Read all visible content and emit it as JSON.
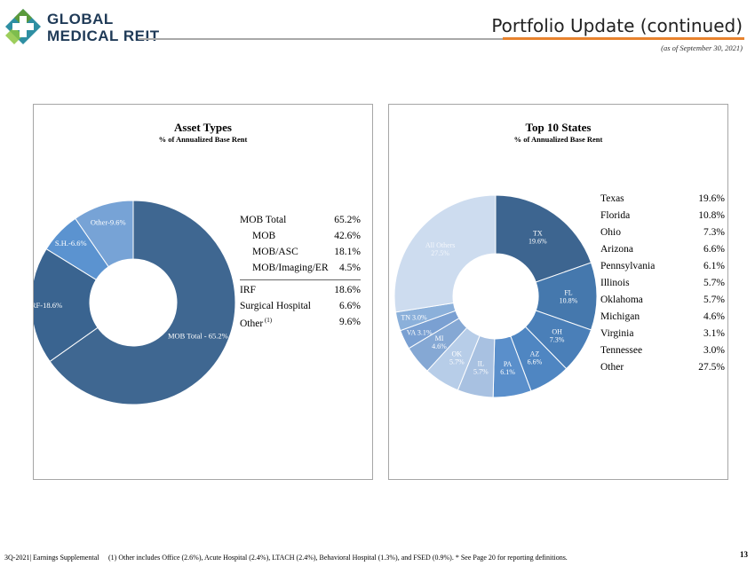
{
  "header": {
    "brand_line1": "GLOBAL",
    "brand_line2": "MEDICAL REIT",
    "title": "Portfolio Update (continued)",
    "as_of": "(as of September 30, 2021)"
  },
  "colors": {
    "accent_orange": "#e8832e",
    "brand_green": "#5b9a3c",
    "brand_teal": "#2f8fa3",
    "brand_navy": "#1f3a57"
  },
  "chart_data": [
    {
      "type": "pie",
      "title": "Asset Types",
      "subtitle": "% of Annualized  Base Rent",
      "categories": [
        "MOB Total",
        "IRF",
        "S.H.",
        "Other"
      ],
      "values": [
        65.2,
        18.6,
        6.6,
        9.6
      ],
      "slice_labels": [
        "MOB Total - 65.2%",
        "IRF-18.6%",
        "S.H.-6.6%",
        "Other-9.6%"
      ],
      "colors": [
        "#3f6791",
        "#3a6490",
        "#5b93d0",
        "#77a3d6"
      ],
      "legend_table": [
        {
          "label": "MOB Total",
          "value": "65.2%",
          "indent": false,
          "sup": ""
        },
        {
          "label": "MOB",
          "value": "42.6%",
          "indent": true,
          "sup": ""
        },
        {
          "label": "MOB/ASC",
          "value": "18.1%",
          "indent": true,
          "sup": ""
        },
        {
          "label": "MOB/Imaging/ER",
          "value": "4.5%",
          "indent": true,
          "sup": ""
        },
        {
          "label": "IRF",
          "value": "18.6%",
          "indent": false,
          "sup": ""
        },
        {
          "label": "Surgical Hospital",
          "value": "6.6%",
          "indent": false,
          "sup": ""
        },
        {
          "label": "Other",
          "value": "9.6%",
          "indent": false,
          "sup": "(1)"
        }
      ]
    },
    {
      "type": "pie",
      "title": "Top 10 States",
      "subtitle": "% of Annualized  Base Rent",
      "categories": [
        "TX",
        "FL",
        "OH",
        "AZ",
        "PA",
        "IL",
        "OK",
        "MI",
        "VA",
        "TN",
        "All Others"
      ],
      "values": [
        19.6,
        10.8,
        7.3,
        6.6,
        6.1,
        5.7,
        5.7,
        4.6,
        3.1,
        3.0,
        27.5
      ],
      "slice_labels": [
        "TX|19.6%",
        "FL|10.8%",
        "OH|7.3%",
        "AZ|6.6%",
        "PA|6.1%",
        "IL|5.7%",
        "OK|5.7%",
        "MI|4.6%",
        "VA 3.1%",
        "TN 3.0%",
        "All Others|27.5%"
      ],
      "colors": [
        "#3d6590",
        "#4578ad",
        "#4a7fb8",
        "#4f86c2",
        "#5a8fcb",
        "#a8c1e1",
        "#b7cde8",
        "#85a8d4",
        "#7aa0d2",
        "#8bb0da",
        "#cddcef"
      ],
      "legend_table": [
        {
          "label": "Texas",
          "value": "19.6%"
        },
        {
          "label": "Florida",
          "value": "10.8%"
        },
        {
          "label": "Ohio",
          "value": "7.3%"
        },
        {
          "label": "Arizona",
          "value": "6.6%"
        },
        {
          "label": "Pennsylvania",
          "value": "6.1%"
        },
        {
          "label": "Illinois",
          "value": "5.7%"
        },
        {
          "label": "Oklahoma",
          "value": "5.7%"
        },
        {
          "label": "Michigan",
          "value": "4.6%"
        },
        {
          "label": "Virginia",
          "value": "3.1%"
        },
        {
          "label": "Tennessee",
          "value": "3.0%"
        },
        {
          "label": "Other",
          "value": "27.5%"
        }
      ]
    }
  ],
  "footer": {
    "left": "3Q-2021| Earnings Supplemental",
    "note": "(1)  Other includes Office (2.6%),  Acute Hospital (2.4%),  LTACH (2.4%),  Behavioral Hospital (1.3%),  and FSED (0.9%).   * See Page 20 for reporting definitions.",
    "page": "13"
  }
}
